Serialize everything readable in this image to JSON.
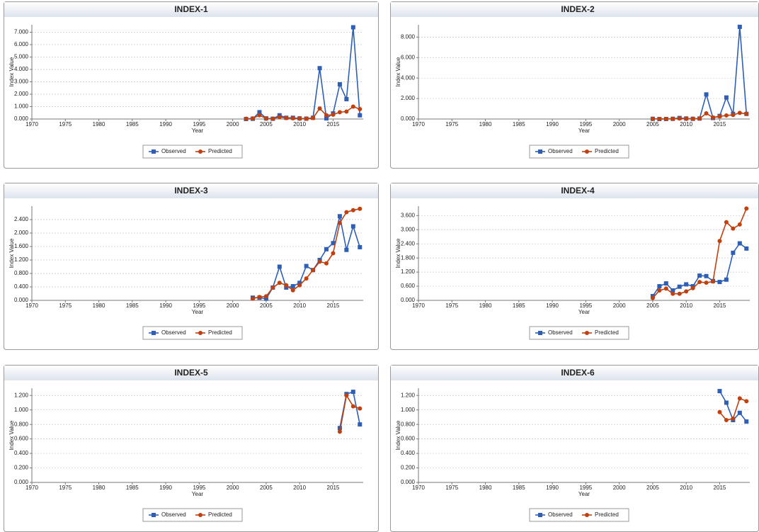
{
  "chart_data": [
    {
      "type": "line",
      "title": "INDEX-1",
      "x_label": "Year",
      "y_label": "Index Value",
      "x": [
        2002,
        2003,
        2004,
        2005,
        2006,
        2007,
        2008,
        2009,
        2010,
        2011,
        2012,
        2013,
        2014,
        2015,
        2016,
        2017,
        2018,
        2019
      ],
      "series": [
        {
          "name": "Observed",
          "color": "#2e5fb4",
          "values": [
            0.0,
            0.02,
            0.55,
            0.05,
            0.02,
            0.3,
            0.1,
            0.1,
            0.05,
            0.03,
            0.1,
            4.1,
            0.05,
            0.45,
            2.8,
            1.6,
            7.4,
            0.3
          ]
        },
        {
          "name": "Predicted",
          "color": "#c0400e",
          "values": [
            0.02,
            0.05,
            0.3,
            0.05,
            0.03,
            0.15,
            0.08,
            0.06,
            0.05,
            0.03,
            0.08,
            0.85,
            0.3,
            0.35,
            0.55,
            0.6,
            1.0,
            0.8
          ]
        }
      ],
      "xlim": [
        1970,
        2019.5
      ],
      "xticks": [
        1970,
        1975,
        1980,
        1985,
        1990,
        1995,
        2000,
        2005,
        2010,
        2015
      ],
      "ylim": [
        0,
        7.6
      ],
      "yticks": [
        {
          "value": 0,
          "label": "0.000"
        },
        {
          "value": 1,
          "label": "1.000"
        },
        {
          "value": 2,
          "label": "2.000"
        },
        {
          "value": 3,
          "label": "3.000"
        },
        {
          "value": 4,
          "label": "4.000"
        },
        {
          "value": 5,
          "label": "5.000"
        },
        {
          "value": 6,
          "label": "6.000"
        },
        {
          "value": 7,
          "label": "7.000"
        }
      ],
      "grid": true,
      "legend": "bottom"
    },
    {
      "type": "line",
      "title": "INDEX-2",
      "x_label": "Year",
      "y_label": "Index Value",
      "x": [
        2005,
        2006,
        2007,
        2008,
        2009,
        2010,
        2011,
        2012,
        2013,
        2014,
        2015,
        2016,
        2017,
        2018,
        2019
      ],
      "series": [
        {
          "name": "Observed",
          "color": "#2e5fb4",
          "values": [
            0.02,
            0.0,
            0.0,
            0.02,
            0.1,
            0.05,
            0.02,
            0.05,
            2.4,
            0.1,
            0.3,
            2.1,
            0.5,
            9.0,
            0.5
          ]
        },
        {
          "name": "Predicted",
          "color": "#c0400e",
          "values": [
            0.02,
            0.01,
            0.01,
            0.02,
            0.05,
            0.04,
            0.03,
            0.04,
            0.55,
            0.15,
            0.25,
            0.35,
            0.4,
            0.6,
            0.5
          ]
        }
      ],
      "xlim": [
        1970,
        2019.5
      ],
      "xticks": [
        1970,
        1975,
        1980,
        1985,
        1990,
        1995,
        2000,
        2005,
        2010,
        2015
      ],
      "ylim": [
        0,
        9.2
      ],
      "yticks": [
        {
          "value": 0,
          "label": "0.000"
        },
        {
          "value": 2,
          "label": "2.000"
        },
        {
          "value": 4,
          "label": "4.000"
        },
        {
          "value": 6,
          "label": "6.000"
        },
        {
          "value": 8,
          "label": "8.000"
        }
      ],
      "grid": true,
      "legend": "bottom"
    },
    {
      "type": "line",
      "title": "INDEX-3",
      "x_label": "Year",
      "y_label": "Index Value",
      "x": [
        2003,
        2004,
        2005,
        2006,
        2007,
        2008,
        2009,
        2010,
        2011,
        2012,
        2013,
        2014,
        2015,
        2016,
        2017,
        2018,
        2019
      ],
      "series": [
        {
          "name": "Observed",
          "color": "#2e5fb4",
          "values": [
            0.08,
            0.08,
            0.05,
            0.38,
            1.0,
            0.38,
            0.42,
            0.52,
            1.02,
            0.9,
            1.2,
            1.52,
            1.7,
            2.5,
            1.5,
            2.2,
            1.58
          ]
        },
        {
          "name": "Predicted",
          "color": "#c0400e",
          "values": [
            0.05,
            0.1,
            0.12,
            0.38,
            0.52,
            0.45,
            0.3,
            0.45,
            0.65,
            0.9,
            1.15,
            1.1,
            1.4,
            2.3,
            2.62,
            2.68,
            2.72
          ]
        }
      ],
      "xlim": [
        1970,
        2019.5
      ],
      "xticks": [
        1970,
        1975,
        1980,
        1985,
        1990,
        1995,
        2000,
        2005,
        2010,
        2015
      ],
      "ylim": [
        0,
        2.8
      ],
      "yticks": [
        {
          "value": 0,
          "label": "0.000"
        },
        {
          "value": 0.4,
          "label": "0.400"
        },
        {
          "value": 0.8,
          "label": "0.800"
        },
        {
          "value": 1.2,
          "label": "1.200"
        },
        {
          "value": 1.6,
          "label": "1.600"
        },
        {
          "value": 2,
          "label": "2.000"
        },
        {
          "value": 2.4,
          "label": "2.400"
        }
      ],
      "grid": true,
      "legend": "bottom"
    },
    {
      "type": "line",
      "title": "INDEX-4",
      "x_label": "Year",
      "y_label": "Index Value",
      "x": [
        2005,
        2006,
        2007,
        2008,
        2009,
        2010,
        2011,
        2012,
        2013,
        2014,
        2015,
        2016,
        2017,
        2018,
        2019
      ],
      "series": [
        {
          "name": "Observed",
          "color": "#2e5fb4",
          "values": [
            0.18,
            0.6,
            0.72,
            0.42,
            0.58,
            0.68,
            0.6,
            1.05,
            1.03,
            0.82,
            0.78,
            0.88,
            2.02,
            2.42,
            2.2
          ]
        },
        {
          "name": "Predicted",
          "color": "#c0400e",
          "values": [
            0.1,
            0.42,
            0.5,
            0.28,
            0.28,
            0.38,
            0.52,
            0.78,
            0.75,
            0.8,
            2.52,
            3.32,
            3.05,
            3.22,
            3.9
          ]
        }
      ],
      "xlim": [
        1970,
        2019.5
      ],
      "xticks": [
        1970,
        1975,
        1980,
        1985,
        1990,
        1995,
        2000,
        2005,
        2010,
        2015
      ],
      "ylim": [
        0,
        4.0
      ],
      "yticks": [
        {
          "value": 0,
          "label": "0.000"
        },
        {
          "value": 0.6,
          "label": "0.600"
        },
        {
          "value": 1.2,
          "label": "1.200"
        },
        {
          "value": 1.8,
          "label": "1.800"
        },
        {
          "value": 2.4,
          "label": "2.400"
        },
        {
          "value": 3,
          "label": "3.000"
        },
        {
          "value": 3.6,
          "label": "3.600"
        }
      ],
      "grid": true,
      "legend": "bottom"
    },
    {
      "type": "line",
      "title": "INDEX-5",
      "x_label": "Year",
      "y_label": "Index Value",
      "x": [
        2016,
        2017,
        2018,
        2019
      ],
      "series": [
        {
          "name": "Observed",
          "color": "#2e5fb4",
          "values": [
            0.75,
            1.22,
            1.25,
            0.8
          ]
        },
        {
          "name": "Predicted",
          "color": "#c0400e",
          "values": [
            0.7,
            1.2,
            1.05,
            1.02
          ]
        }
      ],
      "xlim": [
        1970,
        2019.5
      ],
      "xticks": [
        1970,
        1975,
        1980,
        1985,
        1990,
        1995,
        2000,
        2005,
        2010,
        2015
      ],
      "ylim": [
        0,
        1.3
      ],
      "yticks": [
        {
          "value": 0,
          "label": "0.000"
        },
        {
          "value": 0.2,
          "label": "0.200"
        },
        {
          "value": 0.4,
          "label": "0.400"
        },
        {
          "value": 0.6,
          "label": "0.600"
        },
        {
          "value": 0.8,
          "label": "0.800"
        },
        {
          "value": 1,
          "label": "1.000"
        },
        {
          "value": 1.2,
          "label": "1.200"
        }
      ],
      "grid": true,
      "legend": "bottom"
    },
    {
      "type": "line",
      "title": "INDEX-6",
      "x_label": "Year",
      "y_label": "Index Value",
      "x": [
        2015,
        2016,
        2017,
        2018,
        2019
      ],
      "series": [
        {
          "name": "Observed",
          "color": "#2e5fb4",
          "values": [
            1.26,
            1.1,
            0.86,
            0.96,
            0.84
          ]
        },
        {
          "name": "Predicted",
          "color": "#c0400e",
          "values": [
            0.97,
            0.86,
            0.88,
            1.16,
            1.12
          ]
        }
      ],
      "xlim": [
        1970,
        2019.5
      ],
      "xticks": [
        1970,
        1975,
        1980,
        1985,
        1990,
        1995,
        2000,
        2005,
        2010,
        2015
      ],
      "ylim": [
        0,
        1.3
      ],
      "yticks": [
        {
          "value": 0,
          "label": "0.000"
        },
        {
          "value": 0.2,
          "label": "0.200"
        },
        {
          "value": 0.4,
          "label": "0.400"
        },
        {
          "value": 0.6,
          "label": "0.600"
        },
        {
          "value": 0.8,
          "label": "0.800"
        },
        {
          "value": 1,
          "label": "1.000"
        },
        {
          "value": 1.2,
          "label": "1.200"
        }
      ],
      "grid": true,
      "legend": "bottom"
    }
  ]
}
